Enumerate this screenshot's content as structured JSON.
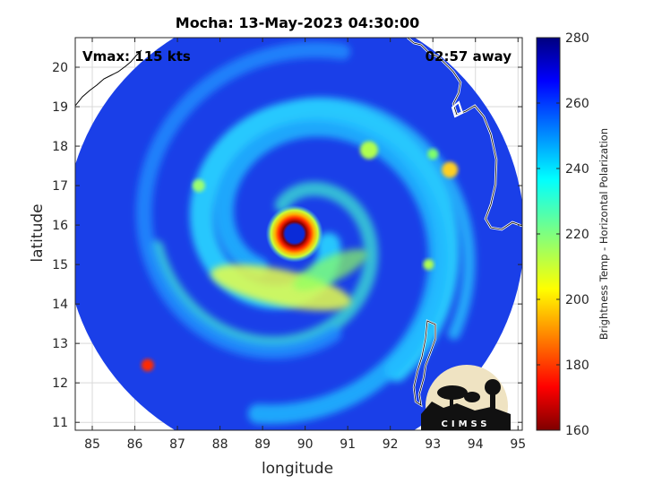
{
  "chart_data": {
    "type": "heatmap",
    "title": "Mocha: 13-May-2023 04:30:00",
    "xlabel": "longitude",
    "ylabel": "latitude",
    "xlim": [
      84.6,
      95.1
    ],
    "ylim": [
      10.8,
      20.75
    ],
    "xticks": [
      85,
      86,
      87,
      88,
      89,
      90,
      91,
      92,
      93,
      94,
      95
    ],
    "yticks": [
      11,
      12,
      13,
      14,
      15,
      16,
      17,
      18,
      19,
      20
    ],
    "grid": true,
    "annotations": {
      "vmax": "Vmax: 115 kts",
      "away": "02:57 away"
    },
    "storm_center": {
      "lon": 89.75,
      "lat": 15.78
    },
    "swath_radius_deg": 5.4,
    "colorbar": {
      "label": "Brightness Temp - Horizontal Polarization",
      "range": [
        160,
        280
      ],
      "ticks": [
        160,
        180,
        200,
        220,
        240,
        260,
        280
      ],
      "colormap": "jet"
    }
  },
  "logo": {
    "text": "CIMSS"
  },
  "colors": {
    "swath_background": "#1a3fe8",
    "coastline": "#000000",
    "grid": "#d9d9d9",
    "axes": "#262626"
  }
}
